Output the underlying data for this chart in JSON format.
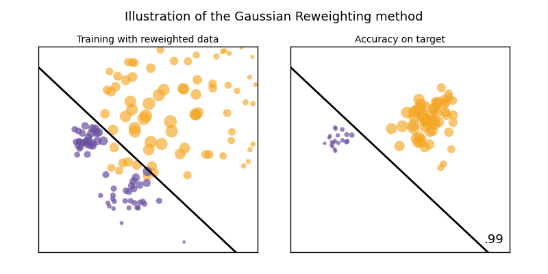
{
  "title": "Illustration of the Gaussian Reweighting method",
  "subtitle_left": "Training with reweighted data",
  "subtitle_right": "Accuracy on target",
  "accuracy_text": ".99",
  "orange_color": "#F5A623",
  "purple_color": "#6B4F9E",
  "background_color": "#ffffff",
  "seed": 42,
  "title_fontsize": 13,
  "subtitle_fontsize": 10,
  "accuracy_fontsize": 13
}
